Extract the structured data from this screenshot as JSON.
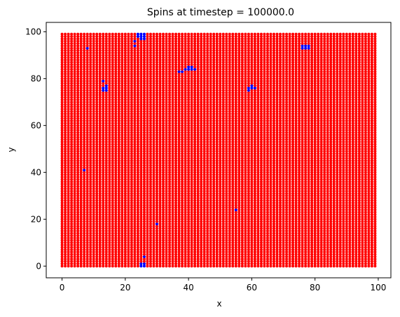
{
  "chart_data": {
    "type": "scatter",
    "title": "Spins at timestep = 100000.0",
    "xlabel": "x",
    "ylabel": "y",
    "xlim": [
      -5,
      104
    ],
    "ylim": [
      -5,
      104
    ],
    "xticks": [
      0,
      20,
      40,
      60,
      80,
      100
    ],
    "yticks": [
      0,
      20,
      40,
      60,
      80,
      100
    ],
    "grid": false,
    "legend": "none",
    "lattice": {
      "x_min": 0,
      "x_max": 99,
      "y_min": 0,
      "y_max": 99,
      "step": 1
    },
    "spin_up_color": "#ff0000",
    "spin_down_color": "#0000ff",
    "spin_up_sites": "all lattice sites not listed as spin-down",
    "spin_down_sites": [
      [
        24,
        99
      ],
      [
        25,
        99
      ],
      [
        26,
        99
      ],
      [
        24,
        98
      ],
      [
        25,
        98
      ],
      [
        26,
        98
      ],
      [
        25,
        97
      ],
      [
        26,
        97
      ],
      [
        23,
        96
      ],
      [
        23,
        94
      ],
      [
        8,
        93
      ],
      [
        76,
        94
      ],
      [
        77,
        94
      ],
      [
        78,
        94
      ],
      [
        76,
        93
      ],
      [
        77,
        93
      ],
      [
        78,
        93
      ],
      [
        40,
        85
      ],
      [
        41,
        85
      ],
      [
        39,
        84
      ],
      [
        40,
        84
      ],
      [
        41,
        84
      ],
      [
        42,
        84
      ],
      [
        37,
        83
      ],
      [
        38,
        83
      ],
      [
        13,
        79
      ],
      [
        14,
        77
      ],
      [
        13,
        76
      ],
      [
        14,
        76
      ],
      [
        13,
        75
      ],
      [
        14,
        75
      ],
      [
        60,
        77
      ],
      [
        59,
        76
      ],
      [
        60,
        76
      ],
      [
        61,
        76
      ],
      [
        59,
        75
      ],
      [
        7,
        41
      ],
      [
        55,
        24
      ],
      [
        30,
        18
      ],
      [
        26,
        4
      ],
      [
        25,
        1
      ],
      [
        26,
        1
      ],
      [
        25,
        0
      ],
      [
        26,
        0
      ]
    ]
  }
}
